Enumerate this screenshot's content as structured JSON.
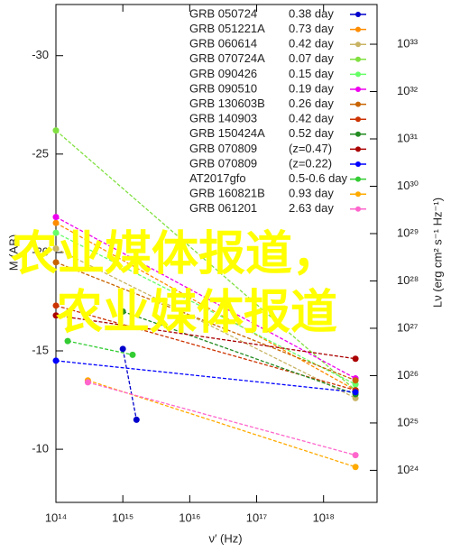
{
  "chart_data": {
    "type": "line",
    "x_log": true,
    "y2_log": true,
    "legend": "upper right",
    "xlabel": "ν′ (Hz)",
    "ylabel": "M (AB)",
    "y2label": "Lν (erg cm² s⁻¹ Hz⁻¹)",
    "xlim": [
      100000000000000,
      6300000000000000000
    ],
    "xticks": [
      {
        "value": 100000000000000,
        "label": "10¹⁴"
      },
      {
        "value": 1000000000000000,
        "label": "10¹⁵"
      },
      {
        "value": 10000000000000000,
        "label": "10¹⁶"
      },
      {
        "value": 100000000000000000,
        "label": "10¹⁷"
      },
      {
        "value": 1000000000000000000,
        "label": "10¹⁸"
      }
    ],
    "ylim": [
      -7.3,
      -32.6
    ],
    "yticks": [
      -30,
      -25,
      -20,
      -15,
      -10
    ],
    "y2lim": [
      2.1e+23,
      6.9e+33
    ],
    "y2ticks": [
      {
        "value": 1e+24,
        "label": "10²⁴"
      },
      {
        "value": 1e+25,
        "label": "10²⁵"
      },
      {
        "value": 1e+26,
        "label": "10²⁶"
      },
      {
        "value": 1e+27,
        "label": "10²⁷"
      },
      {
        "value": 1e+28,
        "label": "10²⁸"
      },
      {
        "value": 1e+29,
        "label": "10²⁹"
      },
      {
        "value": 1e+30,
        "label": "10³⁰"
      },
      {
        "value": 1e+31,
        "label": "10³¹"
      },
      {
        "value": 1e+32,
        "label": "10³²"
      },
      {
        "value": 1e+33,
        "label": "10³³"
      }
    ],
    "series": [
      {
        "name": "GRB 050724",
        "time": "0.38 day",
        "color": "#0000cc",
        "x": [
          1000000000000000,
          1600000000000000
        ],
        "values": [
          -15.1,
          -11.5
        ]
      },
      {
        "name": "GRB 051221A",
        "time": "0.73 day",
        "color": "#ff8c00",
        "x": [
          100000000000000,
          3000000000000000000
        ],
        "values": [
          -21.5,
          -13.0
        ]
      },
      {
        "name": "GRB 060614",
        "time": "0.42 day",
        "color": "#c8b464",
        "x": [
          100000000000000,
          3000000000000000000
        ],
        "values": [
          -20.2,
          -12.6
        ]
      },
      {
        "name": "GRB 070724A",
        "time": "0.07 day",
        "color": "#80e040",
        "x": [
          100000000000000,
          3000000000000000000
        ],
        "values": [
          -26.2,
          -13.0
        ]
      },
      {
        "name": "GRB 090426",
        "time": "0.15 day",
        "color": "#66ff66",
        "x": [
          100000000000000,
          3000000000000000000
        ],
        "values": [
          -21.0,
          -13.3
        ]
      },
      {
        "name": "GRB 090510",
        "time": "0.19 day",
        "color": "#ee00ee",
        "x": [
          100000000000000,
          3000000000000000000
        ],
        "values": [
          -21.8,
          -13.6
        ]
      },
      {
        "name": "GRB 130603B",
        "time": "0.26 day",
        "color": "#c86400",
        "x": [
          100000000000000,
          3000000000000000000
        ],
        "values": [
          -19.5,
          -13.5
        ]
      },
      {
        "name": "GRB 140903",
        "time": "0.42 day",
        "color": "#cc3300",
        "x": [
          100000000000000,
          3000000000000000000
        ],
        "values": [
          -17.3,
          -13.0
        ]
      },
      {
        "name": "GRB 150424A",
        "time": "0.52 day",
        "color": "#228b22",
        "x": [
          1000000000000000,
          3000000000000000000
        ],
        "values": [
          -17.0,
          -12.8
        ]
      },
      {
        "name": "GRB 070809",
        "time": "(z=0.47)",
        "color": "#aa0000",
        "x": [
          100000000000000,
          3000000000000000000
        ],
        "values": [
          -16.8,
          -14.6
        ]
      },
      {
        "name": "GRB 070809",
        "time": "(z=0.22)",
        "color": "#0000ff",
        "x": [
          100000000000000,
          3000000000000000000
        ],
        "values": [
          -14.5,
          -12.9
        ]
      },
      {
        "name": "AT2017gfo",
        "time": "0.5-0.6 day",
        "color": "#33cc33",
        "x": [
          150000000000000,
          1400000000000000
        ],
        "values": [
          -15.5,
          -14.8
        ]
      },
      {
        "name": "GRB 160821B",
        "time": "0.93 day",
        "color": "#ffaa00",
        "x": [
          300000000000000,
          3000000000000000000
        ],
        "values": [
          -13.5,
          -9.1
        ]
      },
      {
        "name": "GRB 061201",
        "time": "2.63 day",
        "color": "#ff66cc",
        "x": [
          300000000000000,
          3000000000000000000
        ],
        "values": [
          -13.4,
          -9.7
        ]
      }
    ],
    "watermark": [
      "农业媒体报道，",
      "农业媒体报道"
    ]
  }
}
